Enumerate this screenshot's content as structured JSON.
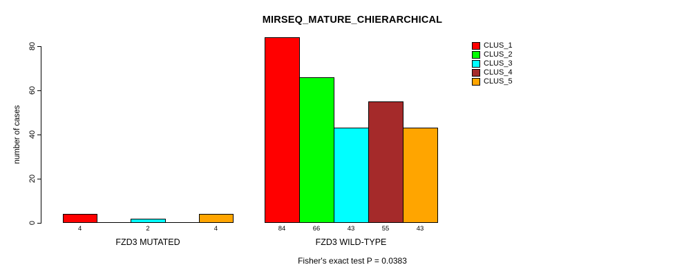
{
  "page": {
    "background_color": "#FFFFFF",
    "text_color": "#000000"
  },
  "chart_data": {
    "type": "bar",
    "title": "MIRSEQ_MATURE_CHIERARCHICAL",
    "ylabel": "number of cases",
    "xlabel": "",
    "ylim": [
      0,
      80
    ],
    "yticks": [
      0,
      20,
      40,
      60,
      80
    ],
    "grid": false,
    "legend_position": "top-right",
    "categories": [
      "FZD3 MUTATED",
      "FZD3 WILD-TYPE"
    ],
    "series": [
      {
        "name": "CLUS_1",
        "color": "#FF0000",
        "values": [
          4,
          84
        ]
      },
      {
        "name": "CLUS_2",
        "color": "#00FF00",
        "values": [
          0,
          66
        ]
      },
      {
        "name": "CLUS_3",
        "color": "#00FFFF",
        "values": [
          2,
          43
        ]
      },
      {
        "name": "CLUS_4",
        "color": "#A52A2A",
        "values": [
          0,
          55
        ]
      },
      {
        "name": "CLUS_5",
        "color": "#FFA500",
        "values": [
          4,
          43
        ]
      }
    ],
    "bar_value_labels": {
      "FZD3 MUTATED": [
        "4",
        "2",
        "4"
      ],
      "FZD3 WILD-TYPE": [
        "84",
        "66",
        "43",
        "55",
        "43"
      ]
    },
    "annotation": "Fisher's exact test P = 0.0383"
  }
}
